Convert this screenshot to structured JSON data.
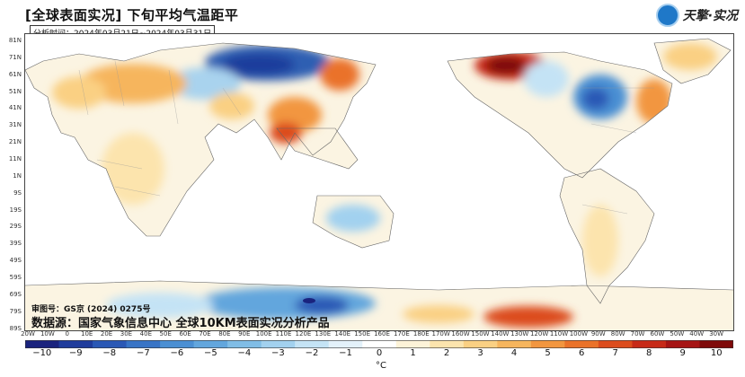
{
  "header": {
    "title": "[全球表面实况]  下旬平均气温距平",
    "time_label": "分析时间：2024年03月21日~2024年03月31日",
    "logo_text": "天擎·实况"
  },
  "map": {
    "lat_labels": [
      "81N",
      "71N",
      "61N",
      "51N",
      "41N",
      "31N",
      "21N",
      "11N",
      "1N",
      "9S",
      "19S",
      "29S",
      "39S",
      "49S",
      "59S",
      "69S",
      "79S",
      "89S"
    ],
    "lon_labels": [
      "20W",
      "10W",
      "0",
      "10E",
      "20E",
      "30E",
      "40E",
      "50E",
      "60E",
      "70E",
      "80E",
      "90E",
      "100E",
      "110E",
      "120E",
      "130E",
      "140E",
      "150E",
      "160E",
      "170E",
      "180E",
      "170W",
      "160W",
      "150W",
      "140W",
      "130W",
      "120W",
      "110W",
      "100W",
      "90W",
      "80W",
      "70W",
      "60W",
      "50W",
      "40W",
      "30W"
    ],
    "anomaly_regions": [
      {
        "name": "northern-siberia",
        "anomaly": -8
      },
      {
        "name": "east-siberia",
        "anomaly": 6
      },
      {
        "name": "alaska",
        "anomaly": 9
      },
      {
        "name": "central-canada",
        "anomaly": -5
      },
      {
        "name": "eastern-europe",
        "anomaly": 4
      },
      {
        "name": "central-asia",
        "anomaly": 4
      },
      {
        "name": "east-china",
        "anomaly": 5
      },
      {
        "name": "greenland",
        "anomaly": 4
      },
      {
        "name": "eastern-north-america",
        "anomaly": 3
      },
      {
        "name": "australia-interior",
        "anomaly": -3
      },
      {
        "name": "antarctica-east",
        "anomaly": -5
      },
      {
        "name": "antarctica-west",
        "anomaly": 7
      }
    ]
  },
  "review_number": "审图号：GS京 (2024) 0275号",
  "source": "数据源：国家气象信息中心  全球10KM表面实况分析产品",
  "colorbar": {
    "ticks": [
      "−10",
      "−9",
      "−8",
      "−7",
      "−6",
      "−5",
      "−4",
      "−3",
      "−2",
      "−1",
      "0",
      "1",
      "2",
      "3",
      "4",
      "5",
      "6",
      "7",
      "8",
      "9",
      "10"
    ],
    "unit": "°C",
    "colors": [
      "#1a237e",
      "#1f3c9c",
      "#2a58b5",
      "#3874c6",
      "#4a8fd3",
      "#62a6dd",
      "#80bde6",
      "#a2d1ef",
      "#c4e3f5",
      "#e3f1fa",
      "#ffffff",
      "#fdf3d8",
      "#fce4ad",
      "#fad083",
      "#f6b55d",
      "#f2963f",
      "#ea7229",
      "#dc4c1d",
      "#c72a18",
      "#a61414",
      "#7f0a0a"
    ]
  }
}
